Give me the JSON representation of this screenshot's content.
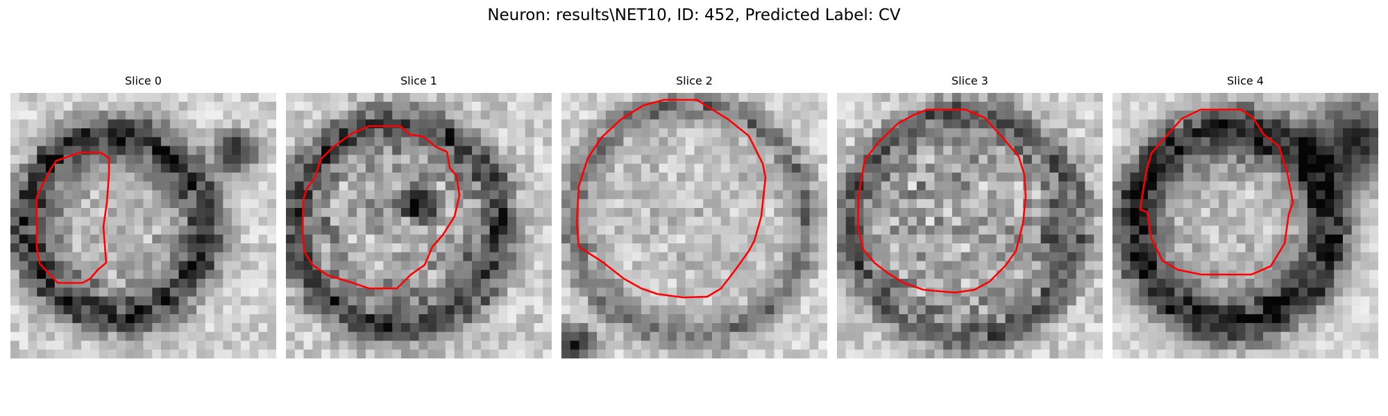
{
  "figure": {
    "title": "Neuron: results\\NET10, ID: 452, Predicted Label: CV"
  },
  "panels": [
    {
      "title": "Slice 0",
      "contour_color": "#ff0000"
    },
    {
      "title": "Slice 1",
      "contour_color": "#ff0000"
    },
    {
      "title": "Slice 2",
      "contour_color": "#ff0000"
    },
    {
      "title": "Slice 3",
      "contour_color": "#ff0000"
    },
    {
      "title": "Slice 4",
      "contour_color": "#ff0000"
    }
  ]
}
